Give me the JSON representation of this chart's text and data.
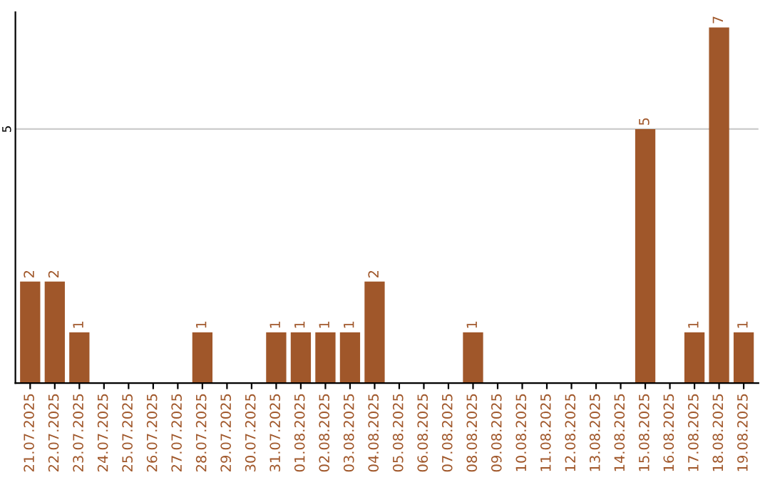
{
  "chart_data": {
    "type": "bar",
    "categories": [
      "21.07.2025",
      "22.07.2025",
      "23.07.2025",
      "24.07.2025",
      "25.07.2025",
      "26.07.2025",
      "27.07.2025",
      "28.07.2025",
      "29.07.2025",
      "30.07.2025",
      "31.07.2025",
      "01.08.2025",
      "02.08.2025",
      "03.08.2025",
      "04.08.2025",
      "05.08.2025",
      "06.08.2025",
      "07.08.2025",
      "08.08.2025",
      "09.08.2025",
      "10.08.2025",
      "11.08.2025",
      "12.08.2025",
      "13.08.2025",
      "14.08.2025",
      "15.08.2025",
      "16.08.2025",
      "17.08.2025",
      "18.08.2025",
      "19.08.2025"
    ],
    "values": [
      2,
      2,
      1,
      0,
      0,
      0,
      0,
      1,
      0,
      0,
      1,
      1,
      1,
      1,
      2,
      0,
      0,
      0,
      1,
      0,
      0,
      0,
      0,
      0,
      0,
      5,
      0,
      1,
      7,
      1
    ],
    "value_labels": [
      "2",
      "2",
      "1",
      null,
      null,
      null,
      null,
      "1",
      null,
      null,
      "1",
      "1",
      "1",
      "1",
      "2",
      null,
      null,
      null,
      "1",
      null,
      null,
      null,
      null,
      null,
      null,
      "5",
      null,
      "1",
      "7",
      "1"
    ],
    "color": "#a0572a",
    "ylim": [
      0,
      7.3
    ],
    "yticks": [
      5
    ],
    "grid": "y",
    "legend": false
  }
}
